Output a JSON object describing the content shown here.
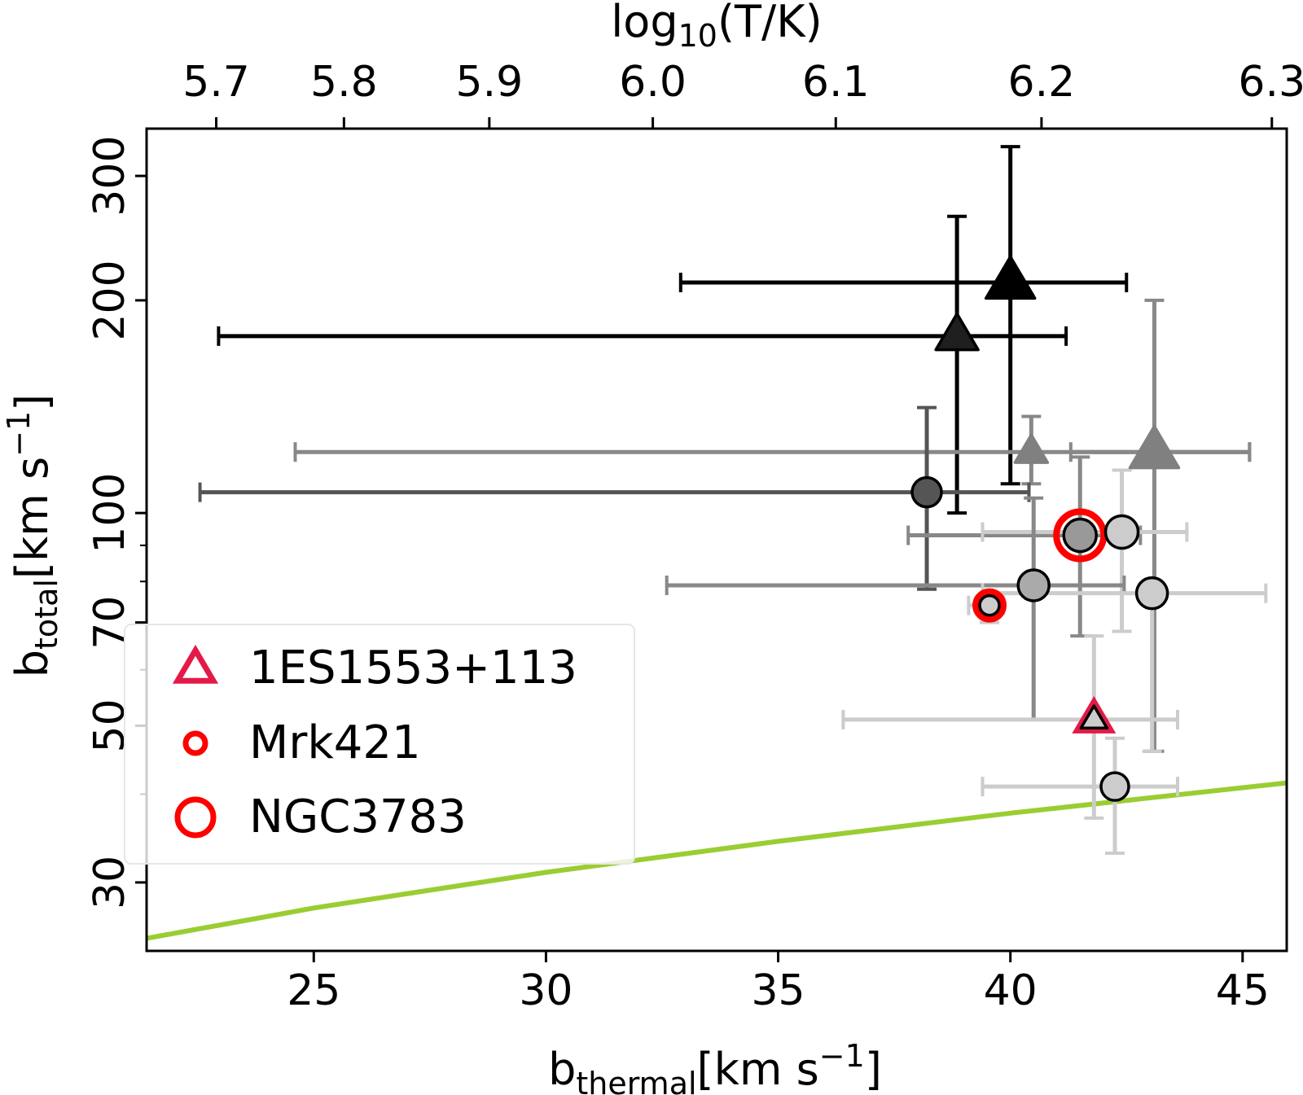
{
  "chart_data": {
    "type": "scatter",
    "xlabel_main": "b",
    "xlabel_sub": "thermal",
    "xlabel_unit": "[km s",
    "xlabel_exp": "−1",
    "xlabel_close": "]",
    "ylabel_main": "b",
    "ylabel_sub": "total",
    "ylabel_unit": "[km s",
    "ylabel_exp": "−1",
    "ylabel_close": "]",
    "top_label_main": "log",
    "top_label_sub": "10",
    "top_label_rest": "(T/K)",
    "xlim": [
      21.4,
      45.95
    ],
    "ylim": [
      24,
      350
    ],
    "yscale": "log",
    "x_ticks": [
      25,
      30,
      35,
      40,
      45
    ],
    "x_tick_labels": [
      "25",
      "30",
      "35",
      "40",
      "45"
    ],
    "y_ticks": [
      30,
      50,
      70,
      100,
      200,
      300
    ],
    "y_tick_labels": [
      "30",
      "50",
      "70",
      "100",
      "200",
      "300"
    ],
    "y_minor_ticks": [
      40,
      60,
      80,
      90
    ],
    "top_ticks": [
      5.7,
      5.8,
      5.9,
      6.0,
      6.1,
      6.2,
      6.3
    ],
    "top_tick_labels": [
      "5.7",
      "5.8",
      "5.9",
      "6.0",
      "6.1",
      "6.2",
      "6.3"
    ],
    "top_tick_map": {
      "5.7": 22.9,
      "5.8": 25.65,
      "5.9": 28.78,
      "6.0": 32.3,
      "6.1": 36.24,
      "6.2": 40.67,
      "6.3": 45.63
    },
    "points": [
      {
        "x": 40.0,
        "y": 212,
        "xerr": [
          32.9,
          42.5
        ],
        "yerr": [
          110,
          330
        ],
        "marker": "triangle",
        "size": 30,
        "color": "#000000",
        "edge": "#000000"
      },
      {
        "x": 38.85,
        "y": 178,
        "xerr": [
          22.95,
          41.2
        ],
        "yerr": [
          100,
          263
        ],
        "marker": "triangle",
        "size": 26,
        "color": "#1f1f1f",
        "edge": "#000000"
      },
      {
        "x": 40.45,
        "y": 122,
        "xerr": [
          24.6,
          45.15
        ],
        "yerr": [
          110,
          137
        ],
        "marker": "triangle",
        "size": 20,
        "color": "#808080",
        "edge": "#808080"
      },
      {
        "x": 43.1,
        "y": 122,
        "xerr": [
          41.3,
          45.15
        ],
        "yerr": [
          46,
          200
        ],
        "marker": "triangle",
        "size": 30,
        "color": "#808080",
        "edge": "#808080"
      },
      {
        "x": 38.2,
        "y": 107,
        "xerr": [
          22.55,
          40.4
        ],
        "yerr": [
          78,
          141
        ],
        "marker": "circle",
        "size": 18,
        "color": "#555555",
        "edge": "#000000"
      },
      {
        "x": 41.5,
        "y": 93,
        "xerr": [
          37.8,
          42.8
        ],
        "yerr": [
          67,
          120
        ],
        "marker": "circle",
        "size": 20,
        "color": "#999999",
        "edge": "#000000"
      },
      {
        "x": 42.4,
        "y": 94,
        "xerr": [
          39.4,
          43.8
        ],
        "yerr": [
          68,
          115
        ],
        "marker": "circle",
        "size": 20,
        "color": "#cccccc",
        "edge": "#000000"
      },
      {
        "x": 40.5,
        "y": 79,
        "xerr": [
          32.6,
          42.45
        ],
        "yerr": [
          51,
          105
        ],
        "marker": "circle",
        "size": 19,
        "color": "#aaaaaa",
        "edge": "#000000"
      },
      {
        "x": 43.05,
        "y": 77,
        "xerr": [
          39.4,
          45.5
        ],
        "yerr": [
          46,
          79
        ],
        "marker": "circle",
        "size": 19,
        "color": "#cccccc",
        "edge": "#000000"
      },
      {
        "x": 39.55,
        "y": 74,
        "xerr": [
          39.1,
          39.85
        ],
        "yerr": [
          70,
          76
        ],
        "marker": "circle",
        "size": 12,
        "color": "#cccccc",
        "edge": "#000000"
      },
      {
        "x": 41.8,
        "y": 51,
        "xerr": [
          36.4,
          43.6
        ],
        "yerr": [
          37,
          67
        ],
        "marker": "triangle",
        "size": 16,
        "color": "#cccccc",
        "edge": "#000000"
      },
      {
        "x": 42.25,
        "y": 41,
        "xerr": [
          39.4,
          43.6
        ],
        "yerr": [
          33,
          48
        ],
        "marker": "circle",
        "size": 17,
        "color": "#cccccc",
        "edge": "#000000"
      }
    ],
    "highlighted": [
      {
        "x": 41.5,
        "y": 93,
        "marker": "circle",
        "size": 29,
        "edge": "#ff0000"
      },
      {
        "x": 39.55,
        "y": 74,
        "marker": "circle",
        "size": 17,
        "edge": "#ff0000"
      },
      {
        "x": 41.8,
        "y": 51,
        "marker": "triangle",
        "size": 20,
        "edge": "#e31a47"
      }
    ],
    "curve": {
      "color": "#9acd32",
      "x": [
        21.4,
        25,
        30,
        35,
        40,
        45.95
      ],
      "y": [
        25,
        27.6,
        31.0,
        34.3,
        37.6,
        41.5
      ]
    },
    "legend": {
      "position": "lower-left",
      "entries": [
        {
          "label": "1ES1553+113",
          "marker": "triangle",
          "color": "#e31a47"
        },
        {
          "label": "Mrk421",
          "marker": "small-circle",
          "color": "#ff0000"
        },
        {
          "label": "NGC3783",
          "marker": "circle",
          "color": "#ff0000"
        }
      ]
    },
    "grid": false
  }
}
